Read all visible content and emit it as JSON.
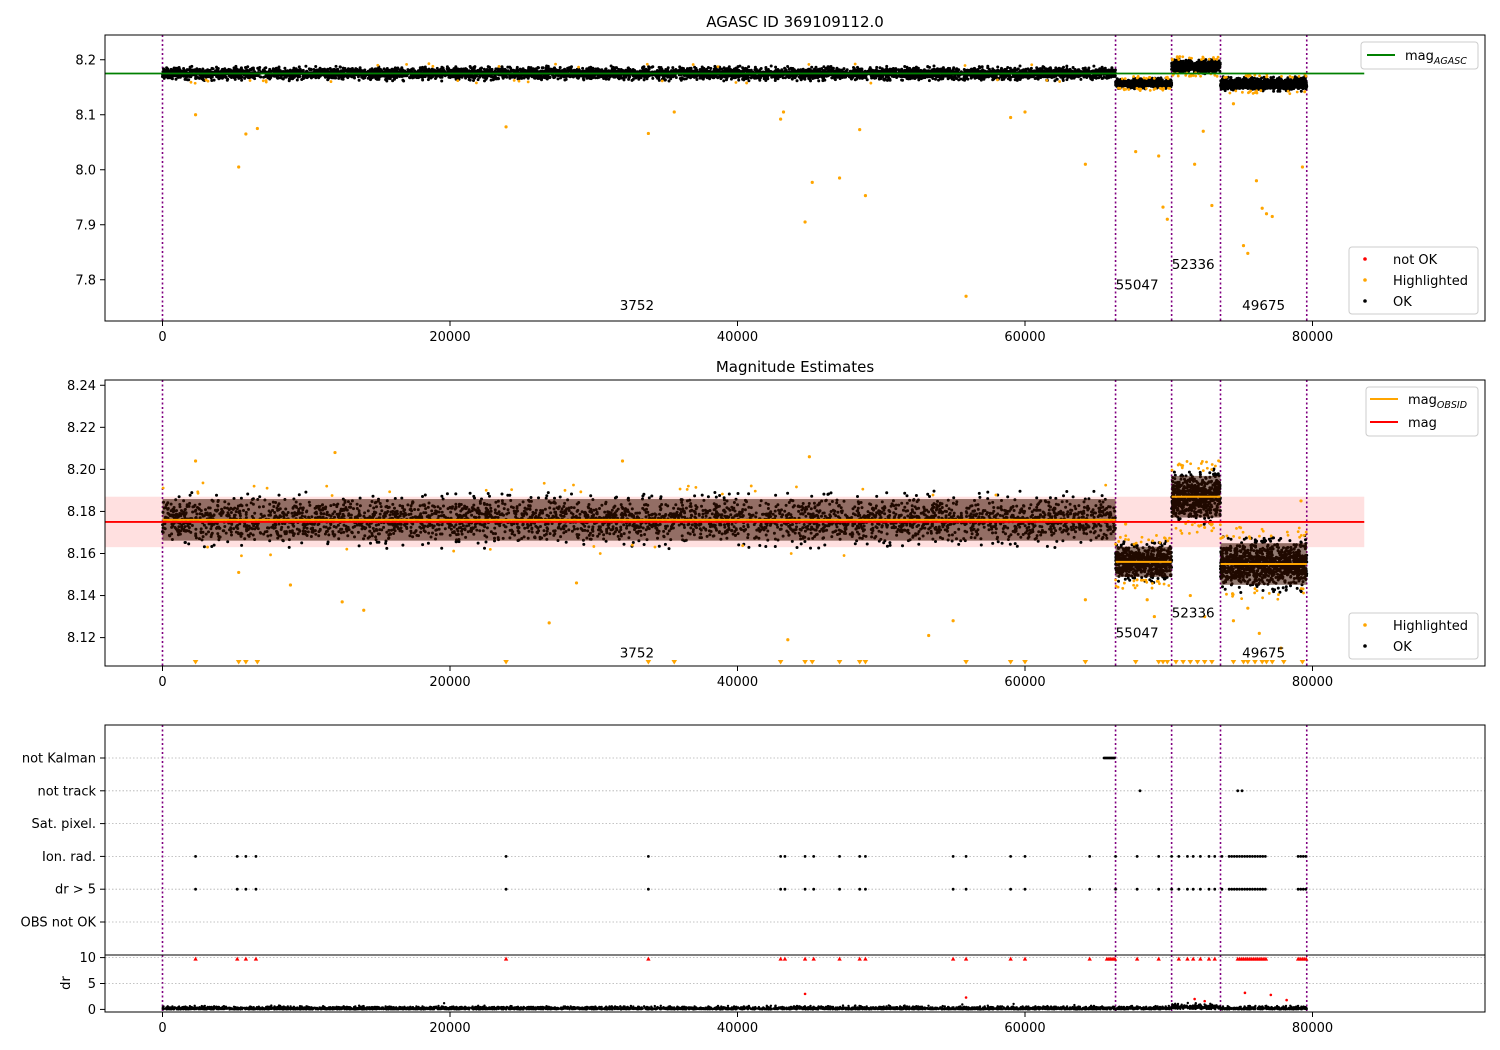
{
  "figure": {
    "background": "#ffffff"
  },
  "chart_data": [
    {
      "type": "scatter",
      "title": "AGASC ID 369109112.0",
      "xlim": [
        -4000,
        92000
      ],
      "ylim": [
        7.725,
        8.245
      ],
      "xticks": [
        0,
        20000,
        40000,
        60000,
        80000
      ],
      "xtick_labels": [
        "0",
        "20000",
        "40000",
        "60000",
        "80000"
      ],
      "yticks": [
        7.8,
        7.9,
        8.0,
        8.1,
        8.2
      ],
      "ytick_labels": [
        "7.8",
        "7.9",
        "8.0",
        "8.1",
        "8.2"
      ],
      "obsid_boundaries": [
        0,
        66300,
        70200,
        73600,
        79600
      ],
      "obsid_labels": [
        {
          "text": "3752",
          "x": 33000,
          "y": 7.745
        },
        {
          "text": "55047",
          "x": 67800,
          "y": 7.782
        },
        {
          "text": "52336",
          "x": 71700,
          "y": 7.82
        },
        {
          "text": "49675",
          "x": 76600,
          "y": 7.745
        }
      ],
      "agasc_mag": 8.175,
      "agasc_line_xrange": [
        -4000,
        83600
      ],
      "segments": [
        {
          "x": [
            0,
            66300
          ],
          "center": 8.175,
          "spread": 0.011
        },
        {
          "x": [
            66300,
            70200
          ],
          "center": 8.157,
          "spread": 0.008
        },
        {
          "x": [
            70200,
            73600
          ],
          "center": 8.188,
          "spread": 0.011
        },
        {
          "x": [
            73600,
            79600
          ],
          "center": 8.156,
          "spread": 0.011
        }
      ],
      "highlighted_points": [
        [
          2300,
          8.1
        ],
        [
          5300,
          8.005
        ],
        [
          5800,
          8.065
        ],
        [
          6600,
          8.075
        ],
        [
          23900,
          8.078
        ],
        [
          33800,
          8.066
        ],
        [
          35600,
          8.105
        ],
        [
          43000,
          8.092
        ],
        [
          43200,
          8.105
        ],
        [
          44700,
          7.905
        ],
        [
          45200,
          7.977
        ],
        [
          47100,
          7.985
        ],
        [
          48500,
          8.073
        ],
        [
          48900,
          7.953
        ],
        [
          55900,
          7.77
        ],
        [
          59000,
          8.095
        ],
        [
          60000,
          8.105
        ],
        [
          64200,
          8.01
        ],
        [
          67700,
          8.033
        ],
        [
          69300,
          8.025
        ],
        [
          69600,
          7.932
        ],
        [
          69900,
          7.91
        ],
        [
          71800,
          8.01
        ],
        [
          72400,
          8.07
        ],
        [
          73000,
          7.935
        ],
        [
          74500,
          8.12
        ],
        [
          75200,
          7.862
        ],
        [
          75500,
          7.848
        ],
        [
          76100,
          7.98
        ],
        [
          76500,
          7.93
        ],
        [
          76800,
          7.92
        ],
        [
          77200,
          7.915
        ],
        [
          79300,
          8.005
        ]
      ],
      "legend": {
        "position": "upper-right-line",
        "entries": [
          {
            "label": "mag",
            "subscript": "AGASC",
            "color": "#008000"
          }
        ]
      },
      "legend2": {
        "position": "lower-right",
        "entries": [
          {
            "label": "not OK",
            "color": "#ff0000"
          },
          {
            "label": "Highlighted",
            "color": "#ffa500"
          },
          {
            "label": "OK",
            "color": "#000000"
          }
        ]
      }
    },
    {
      "type": "scatter",
      "title": "Magnitude Estimates",
      "xlim": [
        -4000,
        92000
      ],
      "ylim": [
        8.1065,
        8.2425
      ],
      "xticks": [
        0,
        20000,
        40000,
        60000,
        80000
      ],
      "xtick_labels": [
        "0",
        "20000",
        "40000",
        "60000",
        "80000"
      ],
      "yticks": [
        8.12,
        8.14,
        8.16,
        8.18,
        8.2,
        8.22,
        8.24
      ],
      "ytick_labels": [
        "8.12",
        "8.14",
        "8.16",
        "8.18",
        "8.20",
        "8.22",
        "8.24"
      ],
      "obsid_boundaries": [
        0,
        66300,
        70200,
        73600,
        79600
      ],
      "obsid_labels": [
        {
          "text": "3752",
          "x": 33000,
          "y": 8.1105
        },
        {
          "text": "55047",
          "x": 67800,
          "y": 8.12
        },
        {
          "text": "52336",
          "x": 71700,
          "y": 8.1295
        },
        {
          "text": "49675",
          "x": 76600,
          "y": 8.1105
        }
      ],
      "mag": 8.175,
      "mag_band": [
        8.163,
        8.187
      ],
      "mag_band_xrange": [
        -4000,
        83600
      ],
      "segments": [
        {
          "x": [
            0,
            66300
          ],
          "center": 8.176,
          "spread": 0.011,
          "mag_obsid": 8.176
        },
        {
          "x": [
            66300,
            70200
          ],
          "center": 8.156,
          "spread": 0.008,
          "mag_obsid": 8.156
        },
        {
          "x": [
            70200,
            73600
          ],
          "center": 8.187,
          "spread": 0.011,
          "mag_obsid": 8.187
        },
        {
          "x": [
            73600,
            79600
          ],
          "center": 8.155,
          "spread": 0.011,
          "mag_obsid": 8.155
        }
      ],
      "highlighted_points": [
        [
          2300,
          8.204
        ],
        [
          5300,
          8.151
        ],
        [
          8900,
          8.145
        ],
        [
          12000,
          8.208
        ],
        [
          12500,
          8.137
        ],
        [
          14000,
          8.133
        ],
        [
          26900,
          8.127
        ],
        [
          28800,
          8.146
        ],
        [
          32000,
          8.204
        ],
        [
          43500,
          8.119
        ],
        [
          45000,
          8.206
        ],
        [
          53300,
          8.121
        ],
        [
          55000,
          8.128
        ],
        [
          64200,
          8.138
        ],
        [
          67000,
          8.174
        ],
        [
          68500,
          8.138
        ],
        [
          69000,
          8.13
        ],
        [
          71500,
          8.14
        ],
        [
          72500,
          8.13
        ],
        [
          74500,
          8.128
        ],
        [
          75500,
          8.134
        ],
        [
          76300,
          8.122
        ],
        [
          77800,
          8.115
        ],
        [
          79200,
          8.185
        ]
      ],
      "below_axis_markers_x": [
        2300,
        5300,
        5800,
        6600,
        23900,
        33800,
        35600,
        43000,
        44700,
        45200,
        47100,
        48500,
        48900,
        55900,
        59000,
        60000,
        64200,
        67700,
        69300,
        69600,
        69900,
        70500,
        71000,
        71500,
        72000,
        72500,
        73000,
        74500,
        75200,
        75500,
        76000,
        76500,
        76800,
        77200,
        78000,
        79300
      ],
      "legend": {
        "position": "upper-right",
        "entries": [
          {
            "label": "mag",
            "subscript": "OBSID",
            "color": "#ffa500"
          },
          {
            "label": "mag",
            "subscript": "",
            "color": "#ff0000"
          }
        ]
      },
      "legend2": {
        "position": "lower-right",
        "entries": [
          {
            "label": "Highlighted",
            "color": "#ffa500"
          },
          {
            "label": "OK",
            "color": "#000000"
          }
        ]
      }
    },
    {
      "type": "scatter",
      "title": "",
      "xlim": [
        -4000,
        92000
      ],
      "flag_rows": [
        "not Kalman",
        "not track",
        "Sat. pixel.",
        "Ion. rad.",
        "dr > 5",
        "OBS not OK"
      ],
      "obsid_boundaries": [
        0,
        66300,
        70200,
        73600,
        79600
      ],
      "flags": {
        "not Kalman": [
          [
            65500,
            66300
          ]
        ],
        "not track": [
          68000,
          74800,
          75100
        ],
        "Sat. pixel.": [],
        "Ion. rad.": [
          2300,
          5200,
          5800,
          6500,
          23900,
          33800,
          43000,
          43300,
          44700,
          45300,
          47100,
          48500,
          48900,
          55000,
          55900,
          59000,
          60000,
          64500,
          66300,
          67800,
          69300,
          70200,
          70700,
          71300,
          71700,
          72200,
          72800,
          73200,
          73700
        ],
        "ion_dense_ranges": [
          [
            74200,
            76800
          ],
          [
            79000,
            79600
          ]
        ],
        "dr > 5": [
          2300,
          5200,
          5800,
          6500,
          23900,
          33800,
          43000,
          43300,
          44700,
          45300,
          47100,
          48500,
          48900,
          55000,
          55900,
          59000,
          60000,
          64500,
          66300,
          67800,
          69300,
          70200,
          70700,
          71300,
          71700,
          72200,
          72800,
          73200,
          73700
        ]
      }
    },
    {
      "type": "scatter",
      "title": "",
      "ylabel": "dr",
      "xlim": [
        -4000,
        92000
      ],
      "ylim": [
        -0.5,
        10.5
      ],
      "yticks": [
        0,
        5,
        10
      ],
      "ytick_labels": [
        "0",
        "5",
        "10"
      ],
      "xticks": [
        0,
        20000,
        40000,
        60000,
        80000
      ],
      "xtick_labels": [
        "0",
        "20000",
        "40000",
        "60000",
        "80000"
      ],
      "obsid_boundaries": [
        0,
        66300,
        70200,
        73600,
        79600
      ],
      "clipped_points_x": [
        2300,
        5200,
        5800,
        6500,
        23900,
        33800,
        43000,
        43300,
        44700,
        45300,
        47100,
        48500,
        48900,
        55000,
        55900,
        59000,
        60000,
        64500,
        67800,
        69300,
        70700,
        71300,
        71700,
        72200,
        72800,
        73200
      ],
      "clipped_dense_ranges": [
        [
          65700,
          66300
        ],
        [
          74800,
          76800
        ],
        [
          79000,
          79600
        ]
      ],
      "outlier_points": [
        [
          44700,
          3.0
        ],
        [
          55900,
          2.3
        ],
        [
          75300,
          3.2
        ],
        [
          77100,
          2.8
        ],
        [
          78200,
          1.8
        ],
        [
          71800,
          2.0
        ],
        [
          72500,
          1.6
        ]
      ]
    }
  ]
}
